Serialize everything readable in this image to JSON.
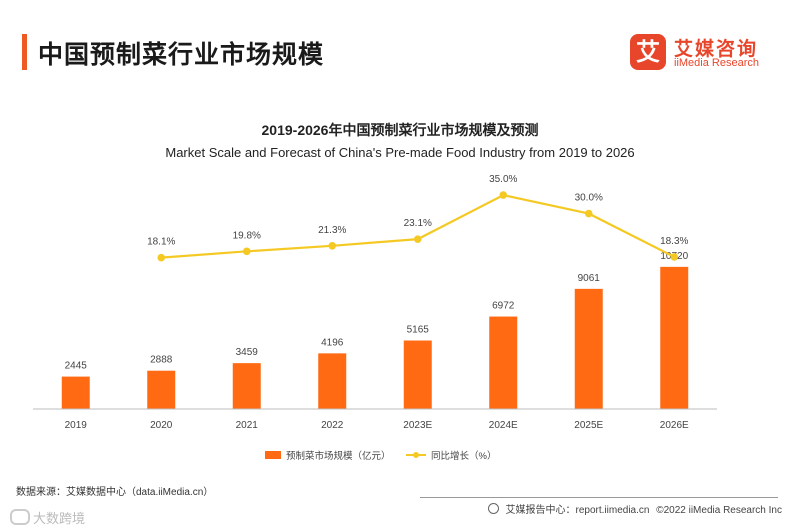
{
  "header": {
    "title": "中国预制菜行业市场规模",
    "logo_mark": "艾",
    "logo_cn": "艾媒咨询",
    "logo_en": "iiMedia Research"
  },
  "colors": {
    "accent": "#ee5a24",
    "bar": "#ff6a13",
    "line": "#f5c924",
    "logo": "#e8462b"
  },
  "chart_data": {
    "type": "bar",
    "title": "2019-2026年中国预制菜行业市场规模及预测",
    "subtitle": "Market Scale and Forecast of China's Pre-made Food Industry from 2019 to 2026",
    "categories": [
      "2019",
      "2020",
      "2021",
      "2022",
      "2023E",
      "2024E",
      "2025E",
      "2026E"
    ],
    "series": [
      {
        "name": "预制菜市场规模（亿元）",
        "type": "bar",
        "values": [
          2445,
          2888,
          3459,
          4196,
          5165,
          6972,
          9061,
          10720
        ],
        "labels": [
          "2445",
          "2888",
          "3459",
          "4196",
          "5165",
          "6972",
          "9061",
          "10720"
        ]
      },
      {
        "name": "同比增长（%）",
        "type": "line",
        "values": [
          null,
          18.1,
          19.8,
          21.3,
          23.1,
          35.0,
          30.0,
          18.3
        ],
        "labels": [
          "",
          "18.1%",
          "19.8%",
          "21.3%",
          "23.1%",
          "35.0%",
          "30.0%",
          "18.3%"
        ]
      }
    ],
    "legend_position": "bottom-center",
    "grid": false
  },
  "footer": {
    "source": "数据来源：艾媒数据中心（data.iiMedia.cn）",
    "report_site": "艾媒报告中心：report.iimedia.cn",
    "copyright": "©2022  iiMedia Research  Inc"
  },
  "watermark": {
    "text": "大数跨境"
  }
}
